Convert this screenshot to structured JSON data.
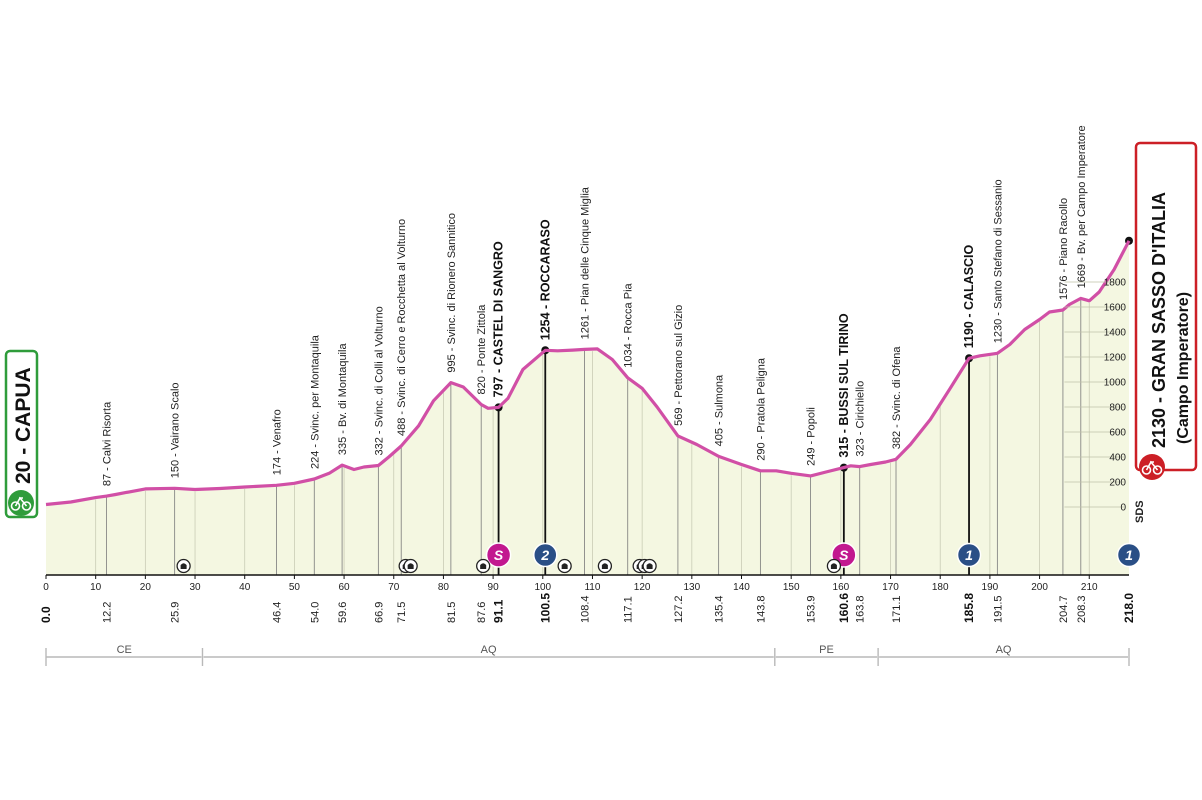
{
  "chart_data": {
    "type": "area",
    "start": {
      "label": "20 - CAPUA"
    },
    "finish": {
      "label": "2130 - GRAN SASSO D'ITALIA",
      "sublabel": "(Campo Imperatore)"
    },
    "sponsor_mark": "SDS",
    "xlim": [
      0,
      218
    ],
    "ylim": [
      0,
      2150
    ],
    "x_ticks": [
      0,
      10,
      20,
      30,
      40,
      50,
      60,
      70,
      80,
      90,
      100,
      110,
      120,
      130,
      140,
      150,
      160,
      170,
      180,
      190,
      200,
      210
    ],
    "y_ticks": [
      0,
      200,
      400,
      600,
      800,
      1000,
      1200,
      1400,
      1600,
      1800
    ],
    "profile": {
      "x": [
        0,
        5,
        10,
        12.2,
        14,
        16,
        20,
        25.9,
        30,
        35,
        40,
        46.4,
        50,
        54,
        57,
        59.6,
        62,
        64,
        66.9,
        69,
        71.5,
        75,
        78,
        81.5,
        84,
        87.6,
        89,
        91.1,
        93,
        96,
        100.5,
        103,
        106,
        108.4,
        111,
        114,
        117.1,
        120,
        123,
        127.2,
        131,
        135.4,
        140,
        143.8,
        147,
        150,
        153.9,
        157,
        160.6,
        162,
        163.8,
        166,
        169,
        171.1,
        174,
        178,
        182,
        185.8,
        188,
        191.5,
        194,
        197,
        200,
        202,
        204.7,
        206,
        208.3,
        210,
        212,
        215,
        218
      ],
      "y": [
        20,
        40,
        75,
        87,
        100,
        115,
        145,
        150,
        140,
        148,
        160,
        174,
        190,
        224,
        270,
        335,
        300,
        320,
        332,
        400,
        488,
        650,
        850,
        995,
        960,
        820,
        790,
        797,
        870,
        1100,
        1254,
        1250,
        1255,
        1261,
        1265,
        1180,
        1034,
        950,
        800,
        569,
        500,
        405,
        340,
        290,
        290,
        270,
        249,
        280,
        315,
        330,
        323,
        340,
        360,
        382,
        500,
        700,
        950,
        1190,
        1210,
        1230,
        1300,
        1420,
        1500,
        1560,
        1576,
        1620,
        1669,
        1650,
        1720,
        1900,
        2130
      ]
    },
    "waypoints": [
      {
        "km": 12.2,
        "alt": 87,
        "name": "Calvi Risorta"
      },
      {
        "km": 25.9,
        "alt": 150,
        "name": "Vairano Scalo"
      },
      {
        "km": 46.4,
        "alt": 174,
        "name": "Venafro"
      },
      {
        "km": 54.0,
        "alt": 224,
        "name": "Svinc. per Montaquila"
      },
      {
        "km": 59.6,
        "alt": 335,
        "name": "Bv. di Montaquila"
      },
      {
        "km": 66.9,
        "alt": 332,
        "name": "Svinc. di Colli al Volturno"
      },
      {
        "km": 71.5,
        "alt": 488,
        "name": "Svinc. di Cerro e Rocchetta al Volturno"
      },
      {
        "km": 81.5,
        "alt": 995,
        "name": "Svinc. di Rionero Sannitico"
      },
      {
        "km": 87.6,
        "alt": 820,
        "name": "Ponte Zittola"
      },
      {
        "km": 91.1,
        "alt": 797,
        "name": "CASTEL DI SANGRO",
        "bold": true
      },
      {
        "km": 100.5,
        "alt": 1254,
        "name": "ROCCARASO",
        "bold": true
      },
      {
        "km": 108.4,
        "alt": 1261,
        "name": "Pian delle Cinque Miglia"
      },
      {
        "km": 117.1,
        "alt": 1034,
        "name": "Rocca Pia"
      },
      {
        "km": 127.2,
        "alt": 569,
        "name": "Pettorano sul Gizio"
      },
      {
        "km": 135.4,
        "alt": 405,
        "name": "Sulmona"
      },
      {
        "km": 143.8,
        "alt": 290,
        "name": "Pratola Peligna"
      },
      {
        "km": 153.9,
        "alt": 249,
        "name": "Popoli"
      },
      {
        "km": 160.6,
        "alt": 315,
        "name": "BUSSI SUL TIRINO",
        "bold": true
      },
      {
        "km": 163.8,
        "alt": 323,
        "name": "Cirichiello"
      },
      {
        "km": 171.1,
        "alt": 382,
        "name": "Svinc. di Ofena"
      },
      {
        "km": 185.8,
        "alt": 1190,
        "name": "CALASCIO",
        "bold": true
      },
      {
        "km": 191.5,
        "alt": 1230,
        "name": "Santo Stefano di Sessanio"
      },
      {
        "km": 204.7,
        "alt": 1576,
        "name": "Piano Racollo"
      },
      {
        "km": 208.3,
        "alt": 1669,
        "name": "Bv. per Campo Imperatore"
      }
    ],
    "km_labels": [
      {
        "km": 0,
        "label": "0.0",
        "bold": true
      },
      {
        "km": 12.2,
        "label": "12.2"
      },
      {
        "km": 25.9,
        "label": "25.9"
      },
      {
        "km": 46.4,
        "label": "46.4"
      },
      {
        "km": 54.0,
        "label": "54.0"
      },
      {
        "km": 59.6,
        "label": "59.6"
      },
      {
        "km": 66.9,
        "label": "66.9"
      },
      {
        "km": 71.5,
        "label": "71.5"
      },
      {
        "km": 81.5,
        "label": "81.5"
      },
      {
        "km": 87.6,
        "label": "87.6"
      },
      {
        "km": 91.1,
        "label": "91.1",
        "bold": true
      },
      {
        "km": 100.5,
        "label": "100.5",
        "bold": true
      },
      {
        "km": 108.4,
        "label": "108.4"
      },
      {
        "km": 117.1,
        "label": "117.1"
      },
      {
        "km": 127.2,
        "label": "127.2"
      },
      {
        "km": 135.4,
        "label": "135.4"
      },
      {
        "km": 143.8,
        "label": "143.8"
      },
      {
        "km": 153.9,
        "label": "153.9"
      },
      {
        "km": 160.6,
        "label": "160.6",
        "bold": true
      },
      {
        "km": 163.8,
        "label": "163.8"
      },
      {
        "km": 171.1,
        "label": "171.1"
      },
      {
        "km": 185.8,
        "label": "185.8",
        "bold": true
      },
      {
        "km": 191.5,
        "label": "191.5"
      },
      {
        "km": 204.7,
        "label": "204.7"
      },
      {
        "km": 208.3,
        "label": "208.3"
      },
      {
        "km": 218,
        "label": "218.0",
        "bold": true
      }
    ],
    "markers": [
      {
        "km": 91.1,
        "type": "sprint",
        "label": "S",
        "color": "#c2188f"
      },
      {
        "km": 100.5,
        "type": "kom",
        "label": "2",
        "color": "#2a4f86"
      },
      {
        "km": 160.6,
        "type": "sprint",
        "label": "S",
        "color": "#c2188f"
      },
      {
        "km": 185.8,
        "type": "kom",
        "label": "1",
        "color": "#2a4f86"
      },
      {
        "km": 218,
        "type": "kom",
        "label": "1",
        "color": "#2a4f86"
      }
    ],
    "tunnels": [
      27.7,
      72.4,
      73.4,
      88.0,
      104.4,
      112.5,
      119.5,
      120.5,
      121.5,
      158.6
    ],
    "regions": [
      {
        "from": 0,
        "to": 31.5,
        "label": "CE"
      },
      {
        "from": 31.5,
        "to": 146.7,
        "label": "AQ"
      },
      {
        "from": 146.7,
        "to": 167.5,
        "label": "PE"
      },
      {
        "from": 167.5,
        "to": 218,
        "label": "AQ"
      }
    ],
    "colors": {
      "profile_line": "#d14fa6",
      "fill": "#f4f7e1",
      "start_box": "#2f9c3b",
      "finish_box": "#cc1f26",
      "grid": "#c9ccb5"
    }
  }
}
